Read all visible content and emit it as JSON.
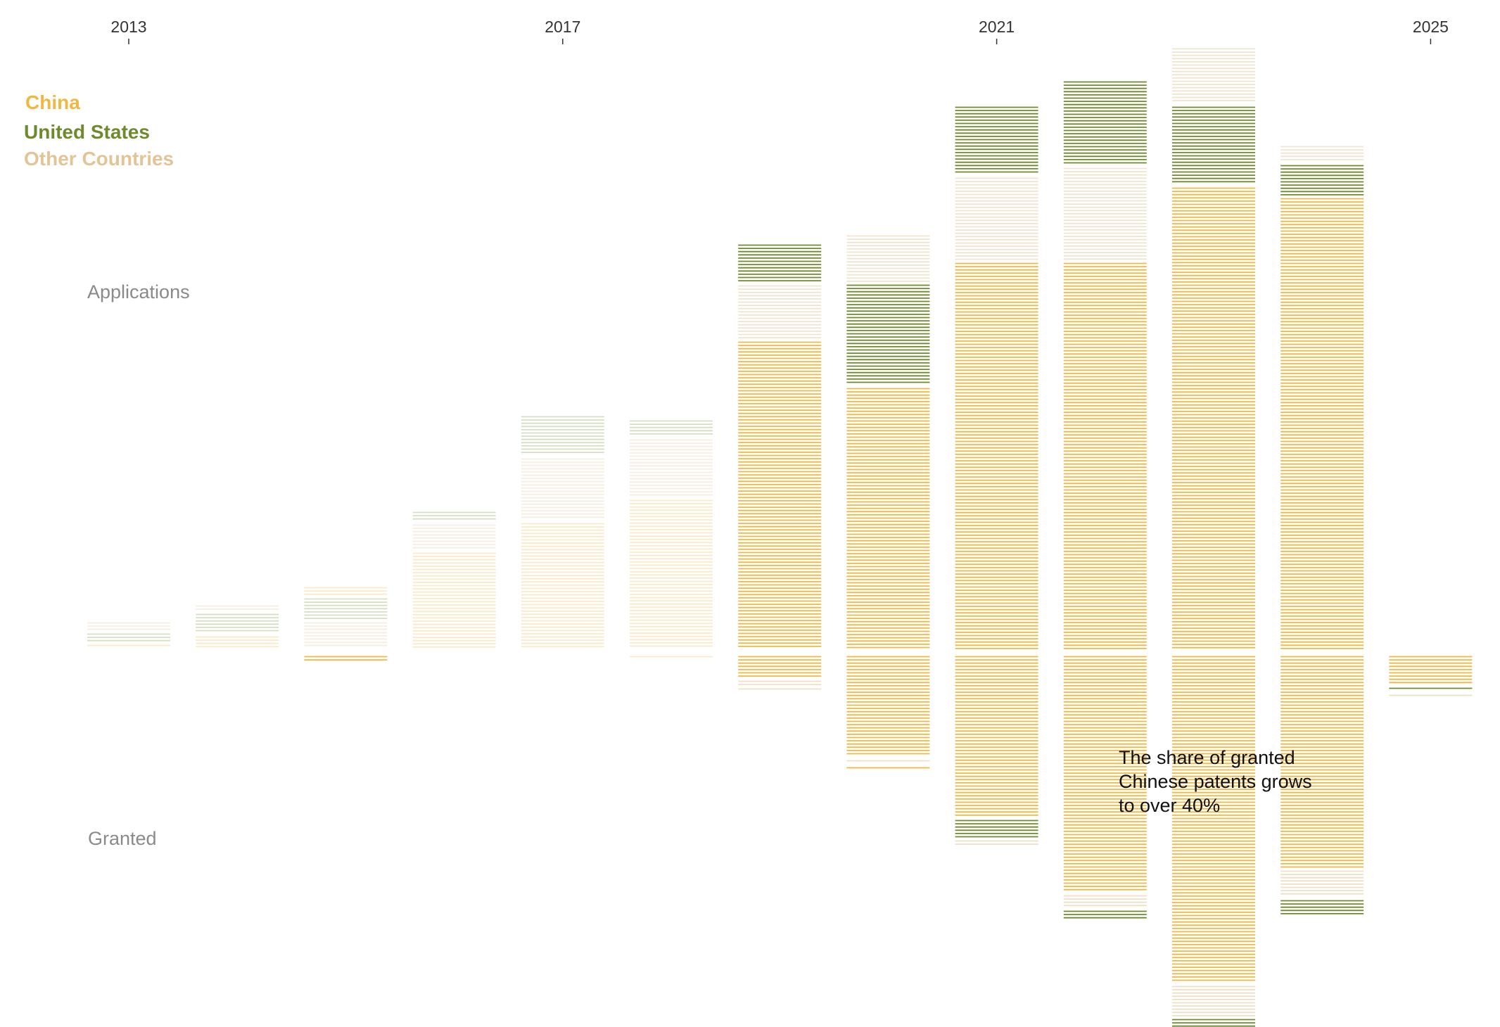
{
  "legend": [
    {
      "label": "China",
      "color": "#f0b742"
    },
    {
      "label": "United States",
      "color": "#6e8a2c"
    },
    {
      "label": "Other Countries",
      "color": "#e2c596"
    }
  ],
  "labels": {
    "applications": "Applications",
    "granted": "Granted"
  },
  "annotation": {
    "text": "The share of granted\nChinese patents grows\nto over 40%"
  },
  "chart_data": {
    "type": "bar",
    "x_tick_labels": [
      "2013",
      "2017",
      "2021",
      "2025"
    ],
    "categories": [
      "2013",
      "2014",
      "2015",
      "2016",
      "2017",
      "2018",
      "2019",
      "2020",
      "2021",
      "2022",
      "2023",
      "2024",
      "2025"
    ],
    "applications": [
      {
        "year": "2013",
        "faded": true,
        "segments": [
          {
            "series": "China",
            "value": 6
          },
          {
            "series": "United States",
            "value": 12
          },
          {
            "series": "Other Countries",
            "value": 12
          }
        ]
      },
      {
        "year": "2014",
        "faded": true,
        "segments": [
          {
            "series": "China",
            "value": 18
          },
          {
            "series": "United States",
            "value": 28
          },
          {
            "series": "Other Countries",
            "value": 8
          }
        ]
      },
      {
        "year": "2015",
        "faded": true,
        "segments": [
          {
            "series": "Other Countries",
            "value": 38
          },
          {
            "series": "United States",
            "value": 30
          },
          {
            "series": "China",
            "value": 12
          }
        ]
      },
      {
        "year": "2016",
        "faded": true,
        "segments": [
          {
            "series": "China",
            "value": 137
          },
          {
            "series": "Other Countries",
            "value": 36
          },
          {
            "series": "United States",
            "value": 14
          }
        ]
      },
      {
        "year": "2017",
        "faded": true,
        "segments": [
          {
            "series": "China",
            "value": 179
          },
          {
            "series": "Other Countries",
            "value": 88
          },
          {
            "series": "United States",
            "value": 56
          }
        ]
      },
      {
        "year": "2018",
        "faded": true,
        "segments": [
          {
            "series": "China",
            "value": 212
          },
          {
            "series": "Other Countries",
            "value": 82
          },
          {
            "series": "United States",
            "value": 23
          }
        ]
      },
      {
        "year": "2019",
        "faded": false,
        "segments": [
          {
            "series": "China",
            "value": 437
          },
          {
            "series": "Other Countries",
            "value": 76
          },
          {
            "series": "United States",
            "value": 54
          }
        ]
      },
      {
        "year": "2020",
        "faded": false,
        "segments": [
          {
            "series": "China",
            "value": 371
          },
          {
            "series": "United States",
            "value": 143
          },
          {
            "series": "Other Countries",
            "value": 66
          }
        ]
      },
      {
        "year": "2021",
        "faded": false,
        "segments": [
          {
            "series": "China",
            "value": 549
          },
          {
            "series": "Other Countries",
            "value": 117
          },
          {
            "series": "United States",
            "value": 97
          }
        ]
      },
      {
        "year": "2022",
        "faded": false,
        "segments": [
          {
            "series": "China",
            "value": 549
          },
          {
            "series": "Other Countries",
            "value": 131
          },
          {
            "series": "United States",
            "value": 119
          }
        ]
      },
      {
        "year": "2023",
        "faded": false,
        "segments": [
          {
            "series": "China",
            "value": 656
          },
          {
            "series": "United States",
            "value": 111
          },
          {
            "series": "Other Countries",
            "value": 79
          }
        ]
      },
      {
        "year": "2024",
        "faded": false,
        "segments": [
          {
            "series": "China",
            "value": 641
          },
          {
            "series": "United States",
            "value": 43
          },
          {
            "series": "Other Countries",
            "value": 23
          }
        ]
      }
    ],
    "granted": [
      {
        "year": "2015",
        "faded": false,
        "segments": [
          {
            "series": "China",
            "value": 10
          }
        ]
      },
      {
        "year": "2018",
        "faded": true,
        "segments": [
          {
            "series": "China",
            "value": 3
          }
        ]
      },
      {
        "year": "2019",
        "faded": false,
        "segments": [
          {
            "series": "China",
            "value": 31
          },
          {
            "series": "Other Countries",
            "value": 7
          },
          {
            "series": "Other Countries",
            "value": 4
          }
        ]
      },
      {
        "year": "2020",
        "faded": false,
        "segments": [
          {
            "series": "China",
            "value": 144
          },
          {
            "series": "Other Countries",
            "value": 6
          },
          {
            "series": "China",
            "value": 6
          }
        ]
      },
      {
        "year": "2021",
        "faded": false,
        "segments": [
          {
            "series": "China",
            "value": 229
          },
          {
            "series": "United States",
            "value": 25
          },
          {
            "series": "Other Countries",
            "value": 10
          }
        ]
      },
      {
        "year": "2022",
        "faded": false,
        "segments": [
          {
            "series": "China",
            "value": 336
          },
          {
            "series": "Other Countries",
            "value": 18
          },
          {
            "series": "United States",
            "value": 11
          }
        ]
      },
      {
        "year": "2023",
        "faded": false,
        "segments": [
          {
            "series": "China",
            "value": 465
          },
          {
            "series": "Other Countries",
            "value": 43
          },
          {
            "series": "United States",
            "value": 14
          }
        ]
      },
      {
        "year": "2024",
        "faded": false,
        "segments": [
          {
            "series": "China",
            "value": 301
          },
          {
            "series": "Other Countries",
            "value": 38
          },
          {
            "series": "United States",
            "value": 21
          }
        ]
      },
      {
        "year": "2025",
        "faded": false,
        "segments": [
          {
            "series": "China",
            "value": 41
          },
          {
            "series": "United States",
            "value": 6
          },
          {
            "series": "Other Countries",
            "value": 4
          }
        ]
      }
    ]
  }
}
